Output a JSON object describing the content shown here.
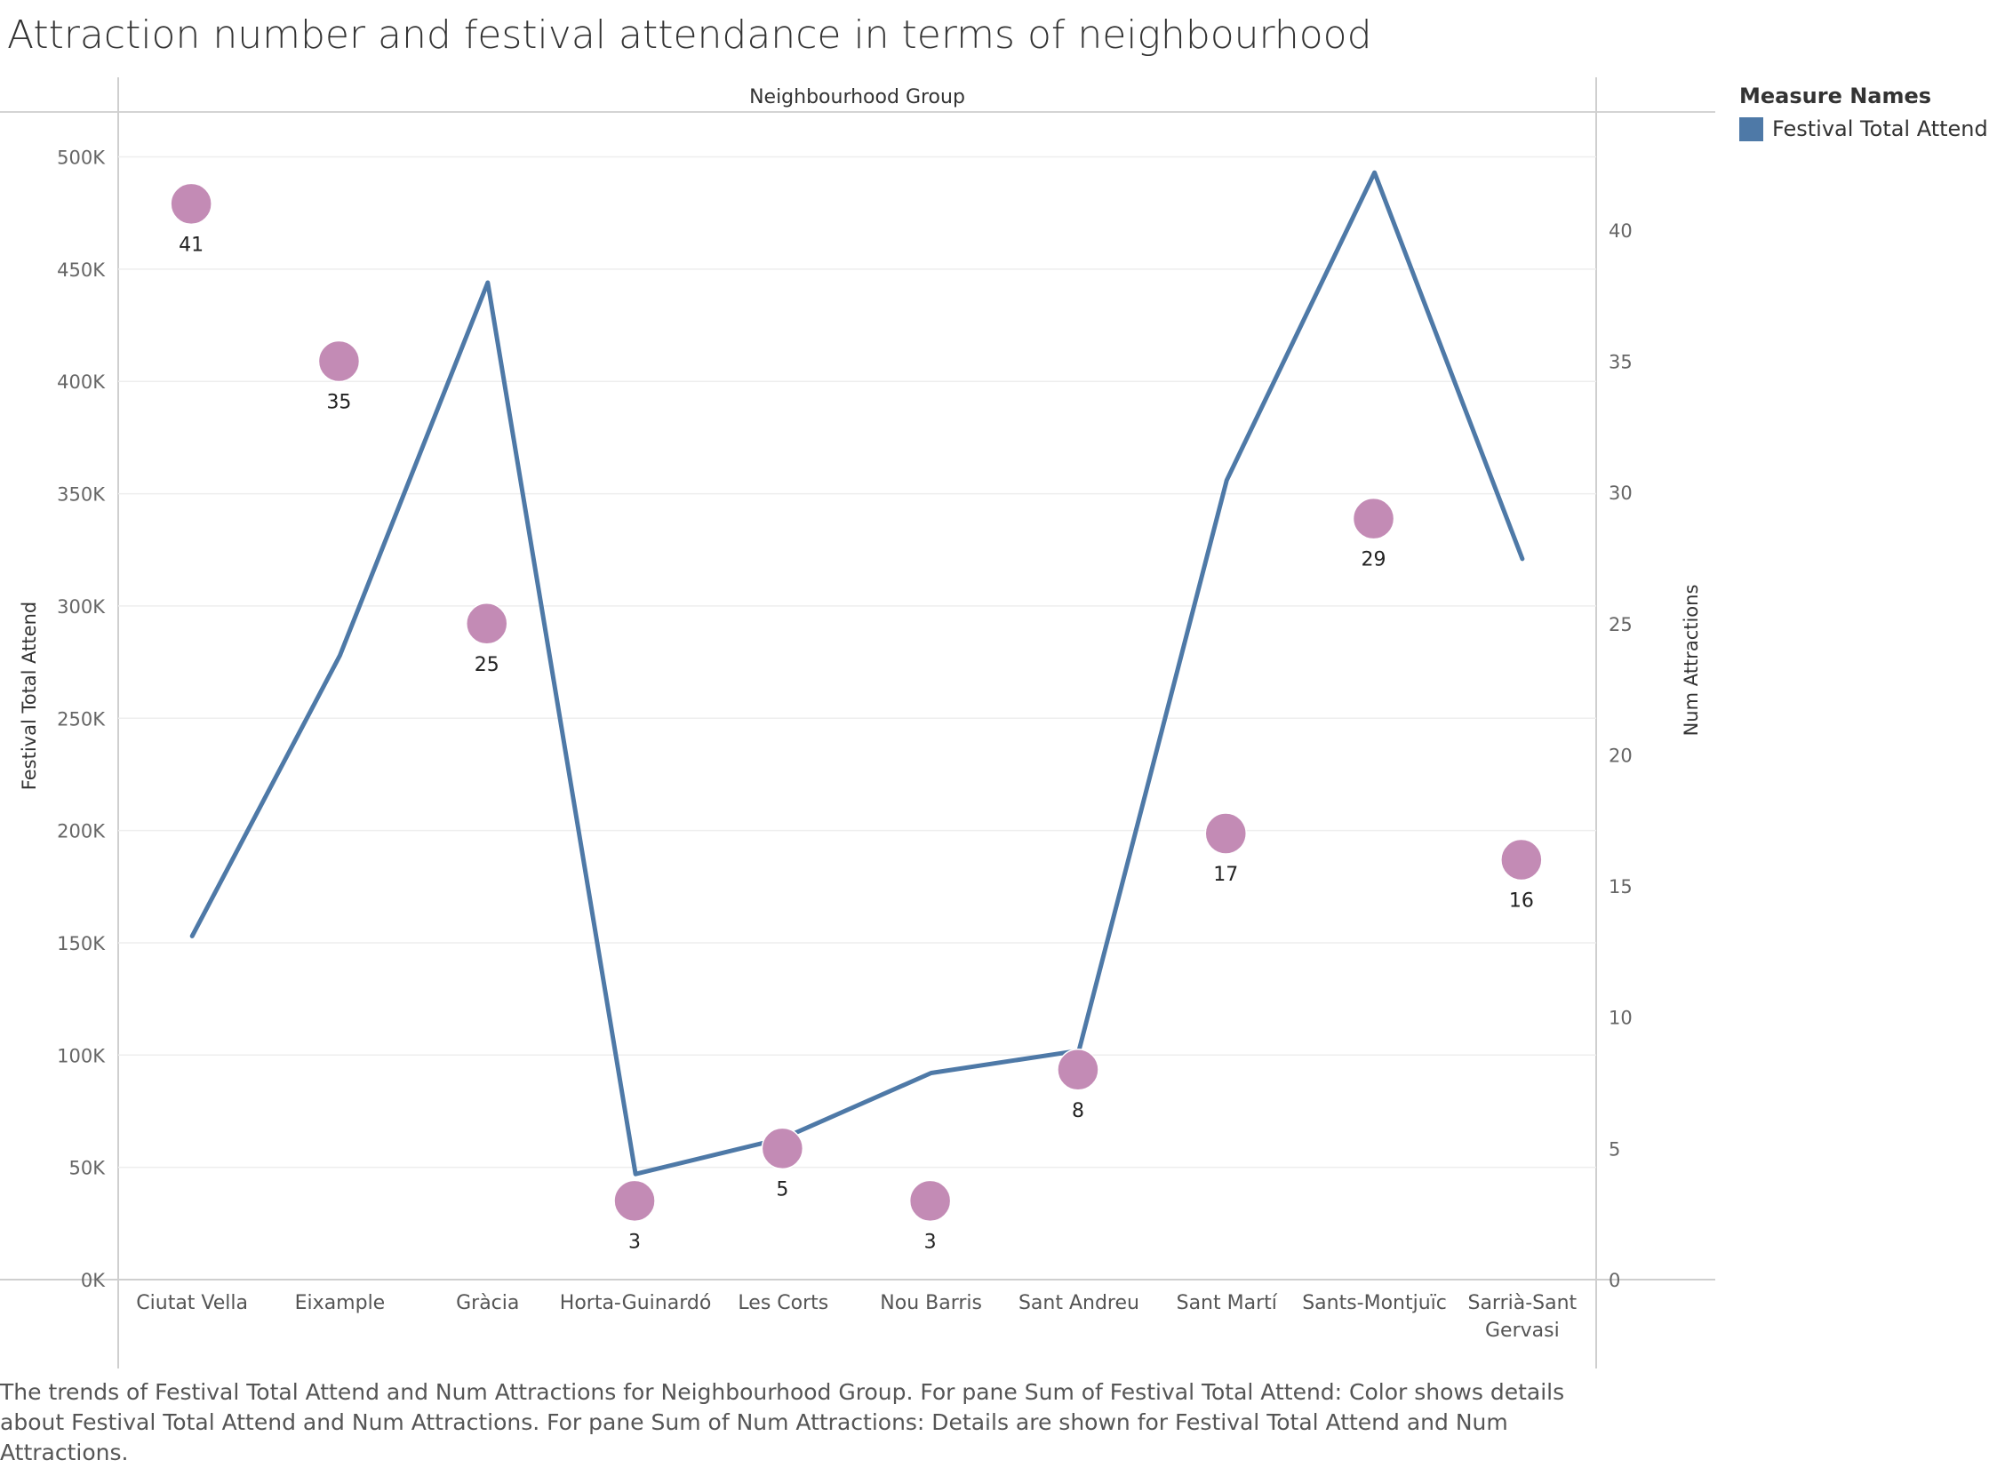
{
  "title": "Attraction number and festival attendance in terms of neighbourhood",
  "caption": "The trends of Festival Total Attend and Num Attractions for Neighbourhood Group.  For pane Sum of Festival Total Attend:  Color shows details about Festival Total Attend and Num Attractions.  For pane Sum of Num Attractions:  Details are shown for Festival Total Attend and Num Attractions.",
  "legend": {
    "title": "Measure Names",
    "items": [
      {
        "label": "Festival Total Attend",
        "color": "#4e79a7"
      }
    ]
  },
  "chart_data": {
    "type": "line",
    "header": "Neighbourhood Group",
    "categories": [
      "Ciutat Vella",
      "Eixample",
      "Gràcia",
      "Horta-Guinardó",
      "Les Corts",
      "Nou Barris",
      "Sant Andreu",
      "Sant Martí",
      "Sants-Montjuïc",
      "Sarrià-Sant Gervasi"
    ],
    "category_lines": [
      [
        "Ciutat Vella"
      ],
      [
        "Eixample"
      ],
      [
        "Gràcia"
      ],
      [
        "Horta-Guinardó"
      ],
      [
        "Les Corts"
      ],
      [
        "Nou Barris"
      ],
      [
        "Sant Andreu"
      ],
      [
        "Sant Martí"
      ],
      [
        "Sants-Montjuïc"
      ],
      [
        "Sarrià-Sant",
        "Gervasi"
      ]
    ],
    "series": [
      {
        "name": "Festival Total Attend",
        "axis": "left",
        "type": "line",
        "color": "#4e79a7",
        "values": [
          153000,
          278000,
          444000,
          47000,
          63000,
          92000,
          102000,
          356000,
          493000,
          321000
        ]
      },
      {
        "name": "Num Attractions",
        "axis": "right",
        "type": "circle",
        "color": "#c38bb5",
        "values": [
          41,
          35,
          25,
          3,
          5,
          3,
          8,
          17,
          29,
          16
        ],
        "labels": [
          "41",
          "35",
          "25",
          "3",
          "5",
          "3",
          "8",
          "17",
          "29",
          "16"
        ]
      }
    ],
    "y_left": {
      "label": "Festival Total Attend",
      "min": 0,
      "max": 520000,
      "ticks": [
        0,
        50000,
        100000,
        150000,
        200000,
        250000,
        300000,
        350000,
        400000,
        450000,
        500000
      ],
      "tick_labels": [
        "0K",
        "50K",
        "100K",
        "150K",
        "200K",
        "250K",
        "300K",
        "350K",
        "400K",
        "450K",
        "500K"
      ]
    },
    "y_right": {
      "label": "Num Attractions",
      "min": 0,
      "max": 44.5,
      "ticks": [
        0,
        5,
        10,
        15,
        20,
        25,
        30,
        35,
        40
      ],
      "tick_labels": [
        "0",
        "5",
        "10",
        "15",
        "20",
        "25",
        "30",
        "35",
        "40"
      ]
    },
    "grid": true
  }
}
